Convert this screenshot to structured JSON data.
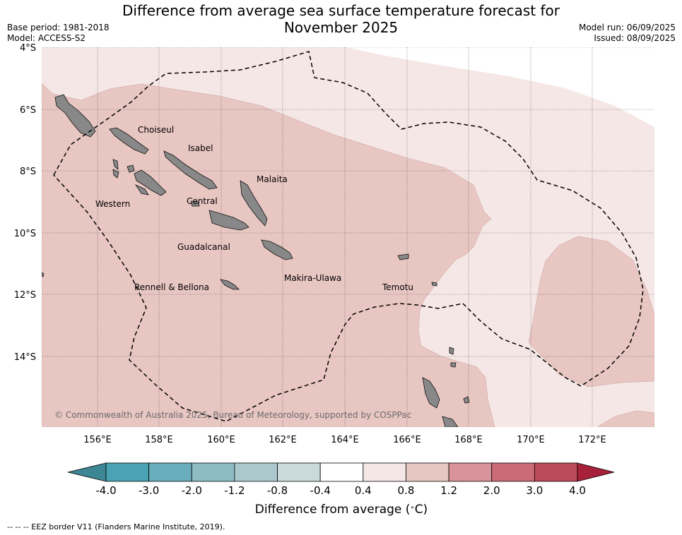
{
  "title_line1": "Difference from average sea surface temperature forecast for",
  "title_line2": "November 2025",
  "meta_left": [
    "Base period: 1981-2018",
    "Model: ACCESS-S2"
  ],
  "meta_right": [
    "Model run: 06/09/2025",
    "Issued: 08/09/2025"
  ],
  "lat_labels": [
    "4°S",
    "6°S",
    "8°S",
    "10°S",
    "12°S",
    "14°S"
  ],
  "lon_labels": [
    "156°E",
    "158°E",
    "160°E",
    "162°E",
    "164°E",
    "166°E",
    "168°E",
    "170°E",
    "172°E"
  ],
  "region_labels": [
    "Choiseul",
    "Isabel",
    "Malaita",
    "Western",
    "Central",
    "Guadalcanal",
    "Makira-Ulawa",
    "Rennell & Bellona",
    "Temotu"
  ],
  "copyright": "© Commonwealth of Australia 2025, Bureau of Meteorology, supported by COSPPac",
  "colorbar": {
    "ticks": [
      "-4.0",
      "-3.0",
      "-2.0",
      "-1.2",
      "-0.8",
      "-0.4",
      "0.4",
      "0.8",
      "1.2",
      "2.0",
      "3.0",
      "4.0"
    ],
    "colors": [
      "#4aa3b4",
      "#6aaebd",
      "#8dbcc5",
      "#abc9cd",
      "#cad9dc",
      "#ffffff",
      "#f5e7e6",
      "#e8c6c2",
      "#d9939a",
      "#cb6b77",
      "#bd4a58"
    ],
    "under_color": "#3d8694",
    "over_color": "#a8213a",
    "label": "Difference from average ($^\\circ$C)"
  },
  "colors": {
    "land": "#888888",
    "anom_04_08": "#f5e7e6",
    "anom_08_12": "#e8c6c2"
  },
  "footnote": "--  --  -- EEZ border V11 (Flanders Marine Institute, 2019)."
}
